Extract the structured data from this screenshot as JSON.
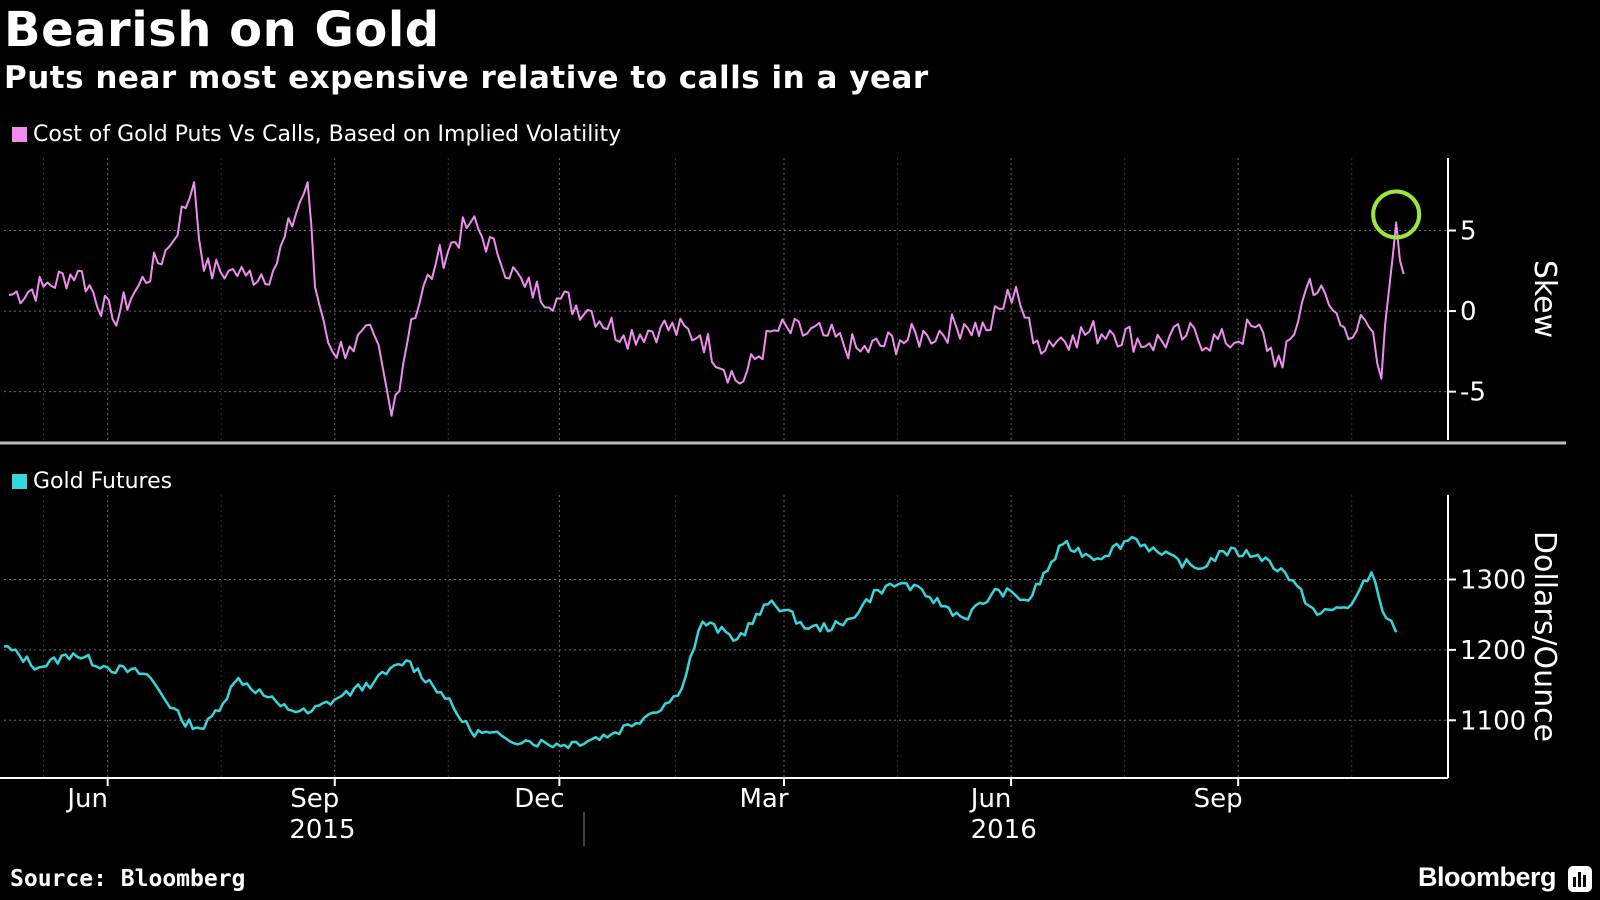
{
  "header": {
    "title": "Bearish on Gold",
    "subtitle": "Puts near most expensive relative to calls in a year"
  },
  "footer": {
    "source": "Source: Bloomberg",
    "brand": "Bloomberg",
    "brand_icon": "bloomberg-terminal-icon"
  },
  "colors": {
    "background": "#000000",
    "skew_line": "#f08cf0",
    "futures_line": "#35d6dc",
    "highlight_circle": "#9de63a",
    "grid": "#6a6a6a",
    "axis": "#ffffff"
  },
  "chart_data": [
    {
      "type": "line",
      "legend": "Cost of Gold Puts Vs Calls, Based on Implied Volatility",
      "ylabel": "Skew",
      "ylim": [
        -8,
        9.5
      ],
      "yticks": [
        -5,
        0,
        5
      ],
      "ytick_labels": [
        "-5",
        "0",
        "5"
      ],
      "grid": true,
      "y_axis_side": "right",
      "annotation": "circle highlighting latest peak near 5.5",
      "series": [
        {
          "x": [
            "2015-05-06",
            "2015-05-20",
            "2015-06-03",
            "2015-06-17",
            "2015-06-26",
            "2015-07-10",
            "2015-07-20",
            "2015-07-24",
            "2015-08-03",
            "2015-08-10",
            "2015-08-21",
            "2015-09-04",
            "2015-09-07",
            "2015-09-14",
            "2015-09-21",
            "2015-10-01",
            "2015-10-08",
            "2015-10-16",
            "2015-10-26",
            "2015-11-09",
            "2015-11-20",
            "2015-12-01",
            "2015-12-14",
            "2015-12-28",
            "2016-01-10",
            "2016-01-25",
            "2016-02-10",
            "2016-02-26",
            "2016-03-11",
            "2016-03-31",
            "2016-04-15",
            "2016-05-01",
            "2016-05-12",
            "2016-05-27",
            "2016-06-05",
            "2016-06-17",
            "2016-06-24",
            "2016-07-10",
            "2016-07-25",
            "2016-08-10",
            "2016-08-25",
            "2016-09-10",
            "2016-09-22",
            "2016-10-03",
            "2016-10-14",
            "2016-10-28",
            "2016-11-07",
            "2016-11-12",
            "2016-11-15",
            "2016-11-18",
            "2016-11-21"
          ],
          "y": [
            1.0,
            1.5,
            2.5,
            -0.5,
            1.2,
            4.0,
            8.0,
            2.5,
            2.5,
            2.2,
            2.5,
            8.0,
            1.5,
            -2.5,
            -2.2,
            -1.5,
            -6.5,
            -0.5,
            3.0,
            5.5,
            3.5,
            1.5,
            0.8,
            0.0,
            -1.5,
            -1.0,
            -1.5,
            -4.5,
            -1.2,
            -1.5,
            -2.5,
            -1.8,
            -1.5,
            -0.8,
            -1.2,
            1.5,
            -2.0,
            -1.5,
            -1.2,
            -2.0,
            -1.5,
            -2.0,
            -1.0,
            -3.5,
            2.0,
            -1.0,
            -1.0,
            -4.2,
            1.2,
            5.5,
            2.3
          ]
        }
      ]
    },
    {
      "type": "line",
      "legend": "Gold Futures",
      "ylabel": "Dollars/Ounce",
      "ylim": [
        1018,
        1420
      ],
      "yticks": [
        1100,
        1200,
        1300
      ],
      "ytick_labels": [
        "1100",
        "1200",
        "1300"
      ],
      "x_tick_labels": [
        "Jun",
        "Sep",
        "Dec",
        "Mar",
        "Jun",
        "Sep"
      ],
      "x_tick_dates": [
        "2015-06-15",
        "2015-09-15",
        "2015-12-15",
        "2016-03-15",
        "2016-06-15",
        "2016-09-15"
      ],
      "x_year_labels": [
        "2015",
        "2016"
      ],
      "x_year_dates": [
        "2015-09-10",
        "2016-06-12"
      ],
      "xlim": [
        "2015-05-04",
        "2016-12-09"
      ],
      "grid": true,
      "y_axis_side": "right",
      "series": [
        {
          "x": [
            "2015-05-04",
            "2015-05-18",
            "2015-06-01",
            "2015-06-15",
            "2015-07-01",
            "2015-07-15",
            "2015-07-24",
            "2015-08-07",
            "2015-08-24",
            "2015-09-04",
            "2015-09-18",
            "2015-10-01",
            "2015-10-14",
            "2015-10-28",
            "2015-11-09",
            "2015-11-23",
            "2015-12-03",
            "2015-12-17",
            "2016-01-05",
            "2016-01-20",
            "2016-02-01",
            "2016-02-11",
            "2016-02-25",
            "2016-03-10",
            "2016-03-25",
            "2016-04-08",
            "2016-04-22",
            "2016-05-02",
            "2016-05-13",
            "2016-05-27",
            "2016-06-10",
            "2016-06-22",
            "2016-07-06",
            "2016-07-20",
            "2016-08-03",
            "2016-08-15",
            "2016-08-30",
            "2016-09-09",
            "2016-09-23",
            "2016-10-04",
            "2016-10-17",
            "2016-10-31",
            "2016-11-08",
            "2016-11-14",
            "2016-11-18"
          ],
          "y": [
            1205,
            1175,
            1195,
            1175,
            1165,
            1100,
            1088,
            1160,
            1120,
            1110,
            1135,
            1155,
            1185,
            1140,
            1085,
            1075,
            1070,
            1065,
            1080,
            1108,
            1135,
            1240,
            1215,
            1270,
            1230,
            1235,
            1285,
            1295,
            1275,
            1245,
            1285,
            1270,
            1350,
            1330,
            1360,
            1335,
            1315,
            1340,
            1335,
            1310,
            1250,
            1265,
            1310,
            1245,
            1225
          ]
        }
      ]
    }
  ]
}
